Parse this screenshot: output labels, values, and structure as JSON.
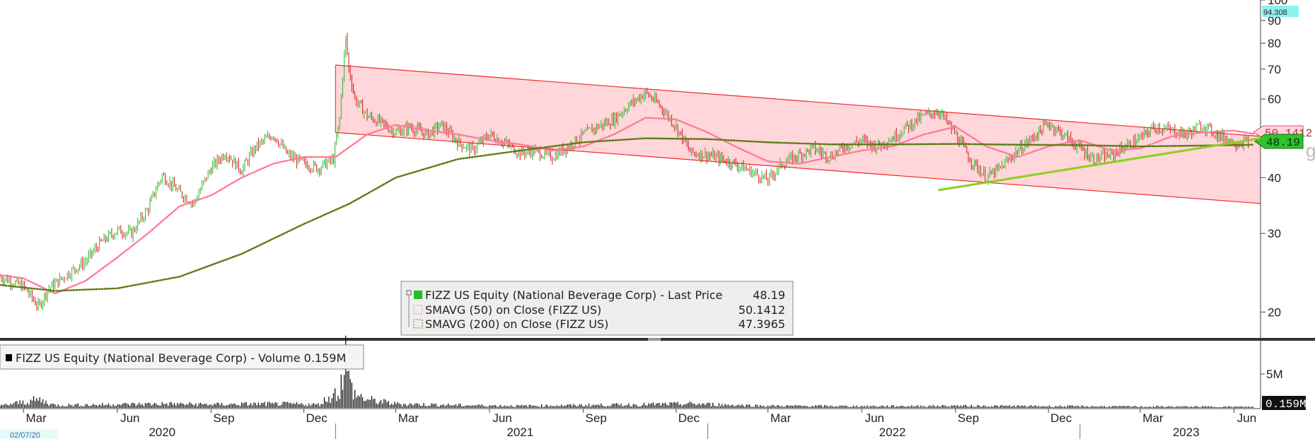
{
  "chart_data": {
    "type": "line",
    "security": "FIZZ US Equity (National Beverage Corp)",
    "start_date_label": "02/07/20",
    "y_axis": {
      "scale": "log",
      "ticks": [
        20,
        30,
        40,
        50,
        60,
        70,
        80,
        90,
        100
      ],
      "tick_labels": [
        "20",
        "30",
        "40",
        "",
        "60",
        "70",
        "80",
        "90",
        "100"
      ],
      "ylim": [
        17.5,
        100
      ]
    },
    "x_axis": {
      "month_labels": [
        "Mar",
        "Jun",
        "Sep",
        "Dec",
        "Mar",
        "Jun",
        "Sep",
        "Dec",
        "Mar",
        "Jun",
        "Sep",
        "Dec",
        "Mar",
        "Jun"
      ],
      "year_labels": [
        "2020",
        "2021",
        "2022",
        "2023"
      ]
    },
    "current_high_label": "94.308",
    "tags": {
      "sma50": "50.1412",
      "last_price": "48.19"
    },
    "series": [
      {
        "name": "FIZZ US Equity (National Beverage Corp) - Last Price",
        "legend_value": "48.19",
        "color": "#22c022",
        "style": "candlestick",
        "points": [
          [
            "2020-02-07",
            24.0
          ],
          [
            "2020-03-01",
            22.8
          ],
          [
            "2020-03-16",
            20.5
          ],
          [
            "2020-03-25",
            22.5
          ],
          [
            "2020-04-15",
            24.5
          ],
          [
            "2020-05-01",
            26.0
          ],
          [
            "2020-05-15",
            28.5
          ],
          [
            "2020-06-01",
            30.5
          ],
          [
            "2020-06-15",
            30.0
          ],
          [
            "2020-07-01",
            34.0
          ],
          [
            "2020-07-15",
            40.5
          ],
          [
            "2020-08-01",
            37.0
          ],
          [
            "2020-08-15",
            35.0
          ],
          [
            "2020-09-01",
            42.0
          ],
          [
            "2020-09-15",
            45.5
          ],
          [
            "2020-10-01",
            41.5
          ],
          [
            "2020-10-15",
            47.0
          ],
          [
            "2020-11-01",
            50.0
          ],
          [
            "2020-11-15",
            45.0
          ],
          [
            "2020-12-01",
            43.0
          ],
          [
            "2020-12-15",
            42.0
          ],
          [
            "2020-12-30",
            44.0
          ],
          [
            "2021-01-05",
            54.0
          ],
          [
            "2021-01-11",
            82.0
          ],
          [
            "2021-01-14",
            70.0
          ],
          [
            "2021-01-20",
            60.0
          ],
          [
            "2021-02-01",
            55.0
          ],
          [
            "2021-02-15",
            53.0
          ],
          [
            "2021-03-01",
            50.5
          ],
          [
            "2021-03-15",
            52.0
          ],
          [
            "2021-04-01",
            50.0
          ],
          [
            "2021-04-15",
            52.5
          ],
          [
            "2021-05-01",
            48.0
          ],
          [
            "2021-05-15",
            46.0
          ],
          [
            "2021-06-01",
            50.0
          ],
          [
            "2021-06-15",
            48.0
          ],
          [
            "2021-07-01",
            45.5
          ],
          [
            "2021-07-15",
            46.0
          ],
          [
            "2021-08-01",
            44.5
          ],
          [
            "2021-08-15",
            46.5
          ],
          [
            "2021-09-01",
            50.0
          ],
          [
            "2021-09-15",
            52.0
          ],
          [
            "2021-10-01",
            54.0
          ],
          [
            "2021-10-15",
            58.0
          ],
          [
            "2021-11-01",
            62.0
          ],
          [
            "2021-11-15",
            58.0
          ],
          [
            "2021-12-01",
            52.0
          ],
          [
            "2021-12-15",
            45.5
          ],
          [
            "2022-01-01",
            45.0
          ],
          [
            "2022-01-15",
            44.0
          ],
          [
            "2022-02-01",
            42.5
          ],
          [
            "2022-02-15",
            41.0
          ],
          [
            "2022-03-01",
            39.5
          ],
          [
            "2022-03-15",
            43.0
          ],
          [
            "2022-04-01",
            45.0
          ],
          [
            "2022-04-15",
            46.5
          ],
          [
            "2022-05-01",
            44.5
          ],
          [
            "2022-05-15",
            47.0
          ],
          [
            "2022-06-01",
            48.5
          ],
          [
            "2022-06-15",
            47.0
          ],
          [
            "2022-07-01",
            49.0
          ],
          [
            "2022-07-15",
            52.0
          ],
          [
            "2022-08-01",
            55.0
          ],
          [
            "2022-08-15",
            56.5
          ],
          [
            "2022-09-01",
            50.0
          ],
          [
            "2022-09-15",
            44.0
          ],
          [
            "2022-10-01",
            40.0
          ],
          [
            "2022-10-15",
            42.0
          ],
          [
            "2022-11-01",
            46.0
          ],
          [
            "2022-11-15",
            49.0
          ],
          [
            "2022-12-01",
            53.0
          ],
          [
            "2022-12-15",
            50.0
          ],
          [
            "2023-01-01",
            46.5
          ],
          [
            "2023-01-15",
            44.0
          ],
          [
            "2023-02-01",
            45.0
          ],
          [
            "2023-02-15",
            47.0
          ],
          [
            "2023-03-01",
            49.0
          ],
          [
            "2023-03-15",
            52.0
          ],
          [
            "2023-04-01",
            51.0
          ],
          [
            "2023-04-15",
            50.0
          ],
          [
            "2023-05-01",
            52.5
          ],
          [
            "2023-05-15",
            50.0
          ],
          [
            "2023-06-01",
            48.0
          ],
          [
            "2023-06-15",
            48.19
          ]
        ]
      },
      {
        "name": "SMAVG (50) on Close (FIZZ US)",
        "legend_value": "50.1412",
        "color": "#ff7b96",
        "style": "dotted",
        "points": [
          [
            "2020-02-07",
            24.2
          ],
          [
            "2020-03-01",
            23.8
          ],
          [
            "2020-04-01",
            22.0
          ],
          [
            "2020-05-01",
            23.5
          ],
          [
            "2020-06-01",
            26.5
          ],
          [
            "2020-07-01",
            30.0
          ],
          [
            "2020-08-01",
            34.5
          ],
          [
            "2020-09-01",
            36.5
          ],
          [
            "2020-10-01",
            40.0
          ],
          [
            "2020-11-01",
            43.0
          ],
          [
            "2020-12-01",
            44.5
          ],
          [
            "2021-01-01",
            44.5
          ],
          [
            "2021-02-01",
            50.0
          ],
          [
            "2021-03-01",
            52.5
          ],
          [
            "2021-04-01",
            51.0
          ],
          [
            "2021-05-01",
            50.0
          ],
          [
            "2021-06-01",
            48.5
          ],
          [
            "2021-07-01",
            47.5
          ],
          [
            "2021-08-01",
            46.0
          ],
          [
            "2021-09-01",
            47.0
          ],
          [
            "2021-10-01",
            50.0
          ],
          [
            "2021-11-01",
            54.5
          ],
          [
            "2021-12-01",
            54.0
          ],
          [
            "2022-01-01",
            50.5
          ],
          [
            "2022-02-01",
            46.5
          ],
          [
            "2022-03-01",
            43.5
          ],
          [
            "2022-04-01",
            43.0
          ],
          [
            "2022-05-01",
            44.5
          ],
          [
            "2022-06-01",
            46.0
          ],
          [
            "2022-07-01",
            47.0
          ],
          [
            "2022-08-01",
            50.0
          ],
          [
            "2022-09-01",
            52.0
          ],
          [
            "2022-10-01",
            47.0
          ],
          [
            "2022-11-01",
            44.5
          ],
          [
            "2022-12-01",
            47.0
          ],
          [
            "2023-01-01",
            48.5
          ],
          [
            "2023-02-01",
            46.0
          ],
          [
            "2023-03-01",
            46.5
          ],
          [
            "2023-04-01",
            49.5
          ],
          [
            "2023-05-01",
            50.5
          ],
          [
            "2023-06-01",
            51.0
          ],
          [
            "2023-06-20",
            50.1412
          ]
        ]
      },
      {
        "name": "SMAVG (200) on Close (FIZZ US)",
        "legend_value": "47.3965",
        "color": "#5a7a12",
        "style": "dotted",
        "points": [
          [
            "2020-02-07",
            23.0
          ],
          [
            "2020-04-01",
            22.3
          ],
          [
            "2020-06-01",
            22.6
          ],
          [
            "2020-08-01",
            24.0
          ],
          [
            "2020-10-01",
            27.0
          ],
          [
            "2020-12-01",
            31.5
          ],
          [
            "2021-01-15",
            35.0
          ],
          [
            "2021-03-01",
            40.0
          ],
          [
            "2021-05-01",
            44.0
          ],
          [
            "2021-07-01",
            46.0
          ],
          [
            "2021-09-01",
            48.0
          ],
          [
            "2021-11-01",
            49.0
          ],
          [
            "2022-01-01",
            48.8
          ],
          [
            "2022-03-01",
            48.0
          ],
          [
            "2022-05-01",
            47.5
          ],
          [
            "2022-07-01",
            47.5
          ],
          [
            "2022-09-01",
            47.6
          ],
          [
            "2022-11-01",
            47.4
          ],
          [
            "2023-01-01",
            47.3
          ],
          [
            "2023-03-01",
            47.0
          ],
          [
            "2023-05-01",
            47.2
          ],
          [
            "2023-06-20",
            47.3965
          ]
        ]
      },
      {
        "name": "Volume",
        "legend_value": "0.159M",
        "color": "#000000",
        "style": "bars",
        "axis_ticks": [
          "5M"
        ],
        "points": [
          [
            "2020-02-07",
            0.3
          ],
          [
            "2020-03-16",
            1.2
          ],
          [
            "2020-04-01",
            0.4
          ],
          [
            "2020-06-01",
            0.5
          ],
          [
            "2020-07-15",
            0.6
          ],
          [
            "2020-09-01",
            0.5
          ],
          [
            "2020-11-01",
            0.6
          ],
          [
            "2020-12-15",
            0.5
          ],
          [
            "2021-01-05",
            2.5
          ],
          [
            "2021-01-11",
            7.8
          ],
          [
            "2021-01-14",
            4.0
          ],
          [
            "2021-01-20",
            2.0
          ],
          [
            "2021-02-01",
            1.2
          ],
          [
            "2021-03-01",
            0.6
          ],
          [
            "2021-05-01",
            0.4
          ],
          [
            "2021-07-01",
            0.3
          ],
          [
            "2021-09-01",
            0.4
          ],
          [
            "2021-11-01",
            0.5
          ],
          [
            "2021-12-15",
            0.6
          ],
          [
            "2022-03-01",
            0.3
          ],
          [
            "2022-06-01",
            0.25
          ],
          [
            "2022-09-01",
            0.3
          ],
          [
            "2022-12-01",
            0.25
          ],
          [
            "2023-03-01",
            0.2
          ],
          [
            "2023-06-20",
            0.159
          ]
        ]
      }
    ],
    "annotations": [
      {
        "type": "channel",
        "color": "#ff9aa8",
        "upper": [
          [
            "2021-01-01",
            71.5
          ],
          [
            "2023-06-27",
            49.5
          ]
        ],
        "lower": [
          [
            "2021-01-01",
            50.5
          ],
          [
            "2023-06-27",
            35.0
          ]
        ]
      },
      {
        "type": "trendline",
        "color": "#8ccf1f",
        "points": [
          [
            "2022-08-15",
            37.5
          ],
          [
            "2023-06-27",
            49.0
          ]
        ]
      }
    ]
  }
}
